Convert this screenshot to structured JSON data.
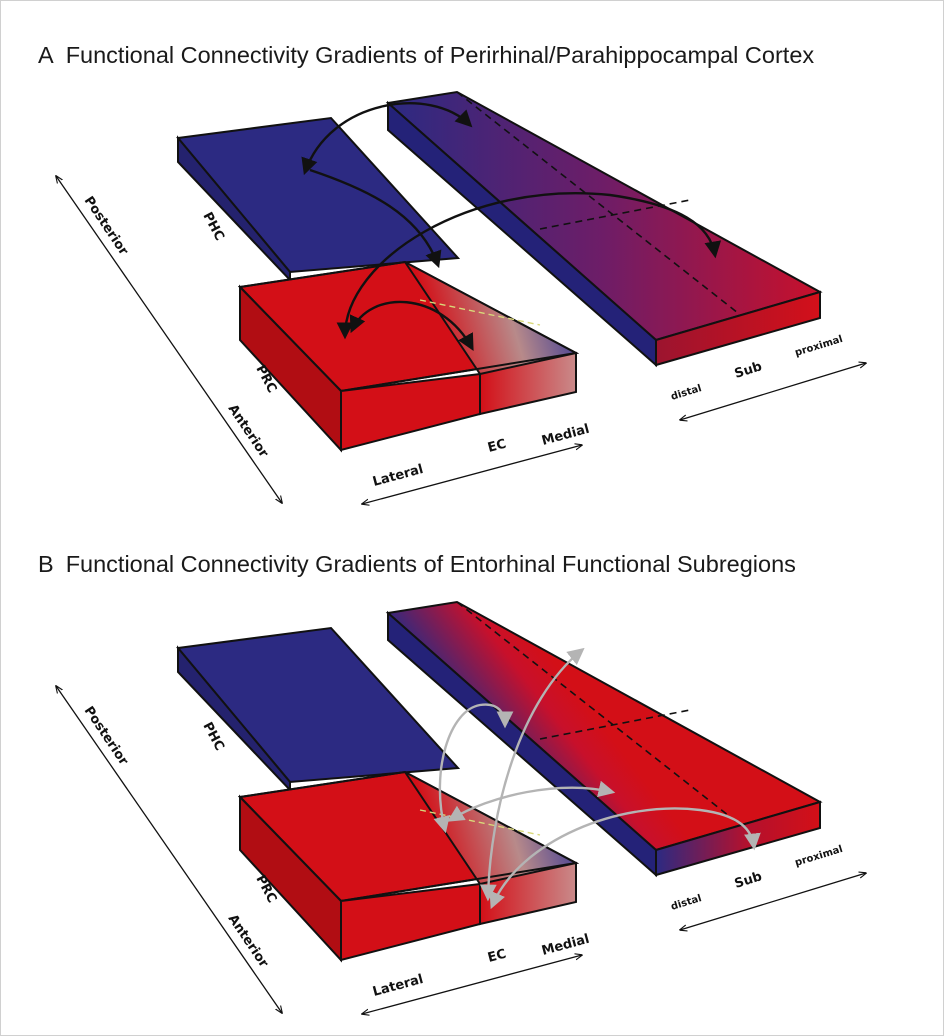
{
  "panels": [
    {
      "letter": "A",
      "title": "Functional Connectivity Gradients of Perirhinal/Parahippocampal Cortex",
      "labels": {
        "posterior": "Posterior",
        "anterior": "Anterior",
        "phc": "PHC",
        "prc": "PRC",
        "ec": "EC",
        "lateral": "Lateral",
        "medial": "Medial",
        "distal": "distal",
        "sub": "Sub",
        "proximal": "proximal"
      },
      "colors": {
        "blue": "#2c2a82",
        "red": "#d30f17",
        "arrow": "#111111"
      }
    },
    {
      "letter": "B",
      "title": "Functional Connectivity Gradients of Entorhinal Functional Subregions",
      "labels": {
        "posterior": "Posterior",
        "anterior": "Anterior",
        "phc": "PHC",
        "prc": "PRC",
        "ec": "EC",
        "lateral": "Lateral",
        "medial": "Medial",
        "distal": "distal",
        "sub": "Sub",
        "proximal": "proximal"
      },
      "colors": {
        "blue": "#2c2a82",
        "red": "#d30f17",
        "arrow": "#b4b4b4"
      }
    }
  ]
}
